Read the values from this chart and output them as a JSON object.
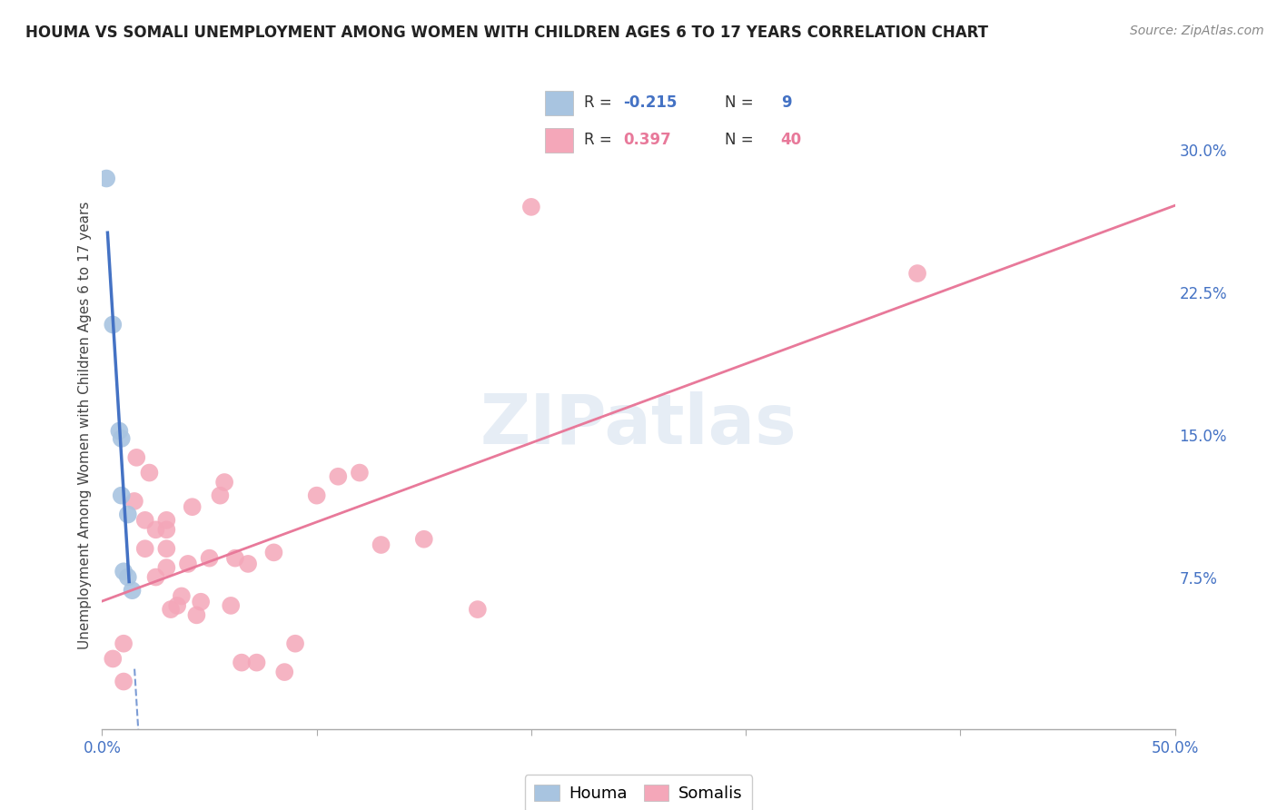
{
  "title": "HOUMA VS SOMALI UNEMPLOYMENT AMONG WOMEN WITH CHILDREN AGES 6 TO 17 YEARS CORRELATION CHART",
  "source": "Source: ZipAtlas.com",
  "ylabel": "Unemployment Among Women with Children Ages 6 to 17 years",
  "xlim": [
    0.0,
    0.5
  ],
  "ylim": [
    -0.005,
    0.315
  ],
  "xticks": [
    0.0,
    0.1,
    0.2,
    0.3,
    0.4,
    0.5
  ],
  "xtick_labels": [
    "0.0%",
    "",
    "",
    "",
    "",
    "50.0%"
  ],
  "yticks_right": [
    0.075,
    0.15,
    0.225,
    0.3
  ],
  "ytick_right_labels": [
    "7.5%",
    "15.0%",
    "22.5%",
    "30.0%"
  ],
  "houma_R": -0.215,
  "houma_N": 9,
  "somali_R": 0.397,
  "somali_N": 40,
  "houma_color": "#a8c4e0",
  "somali_color": "#f4a7b9",
  "houma_line_color": "#4472c4",
  "somali_line_color": "#e8799a",
  "background_color": "#ffffff",
  "grid_color": "#cccccc",
  "watermark": "ZIPatlas",
  "houma_x": [
    0.002,
    0.005,
    0.008,
    0.009,
    0.009,
    0.01,
    0.012,
    0.012,
    0.014
  ],
  "houma_y": [
    0.285,
    0.208,
    0.152,
    0.148,
    0.118,
    0.078,
    0.108,
    0.075,
    0.068
  ],
  "somali_x": [
    0.005,
    0.01,
    0.01,
    0.015,
    0.016,
    0.02,
    0.02,
    0.022,
    0.025,
    0.025,
    0.03,
    0.03,
    0.03,
    0.03,
    0.032,
    0.035,
    0.037,
    0.04,
    0.042,
    0.044,
    0.046,
    0.05,
    0.055,
    0.057,
    0.06,
    0.062,
    0.065,
    0.068,
    0.072,
    0.08,
    0.085,
    0.09,
    0.1,
    0.11,
    0.12,
    0.13,
    0.15,
    0.175,
    0.2,
    0.38
  ],
  "somali_y": [
    0.032,
    0.04,
    0.02,
    0.115,
    0.138,
    0.09,
    0.105,
    0.13,
    0.075,
    0.1,
    0.09,
    0.1,
    0.105,
    0.08,
    0.058,
    0.06,
    0.065,
    0.082,
    0.112,
    0.055,
    0.062,
    0.085,
    0.118,
    0.125,
    0.06,
    0.085,
    0.03,
    0.082,
    0.03,
    0.088,
    0.025,
    0.04,
    0.118,
    0.128,
    0.13,
    0.092,
    0.095,
    0.058,
    0.27,
    0.235
  ]
}
